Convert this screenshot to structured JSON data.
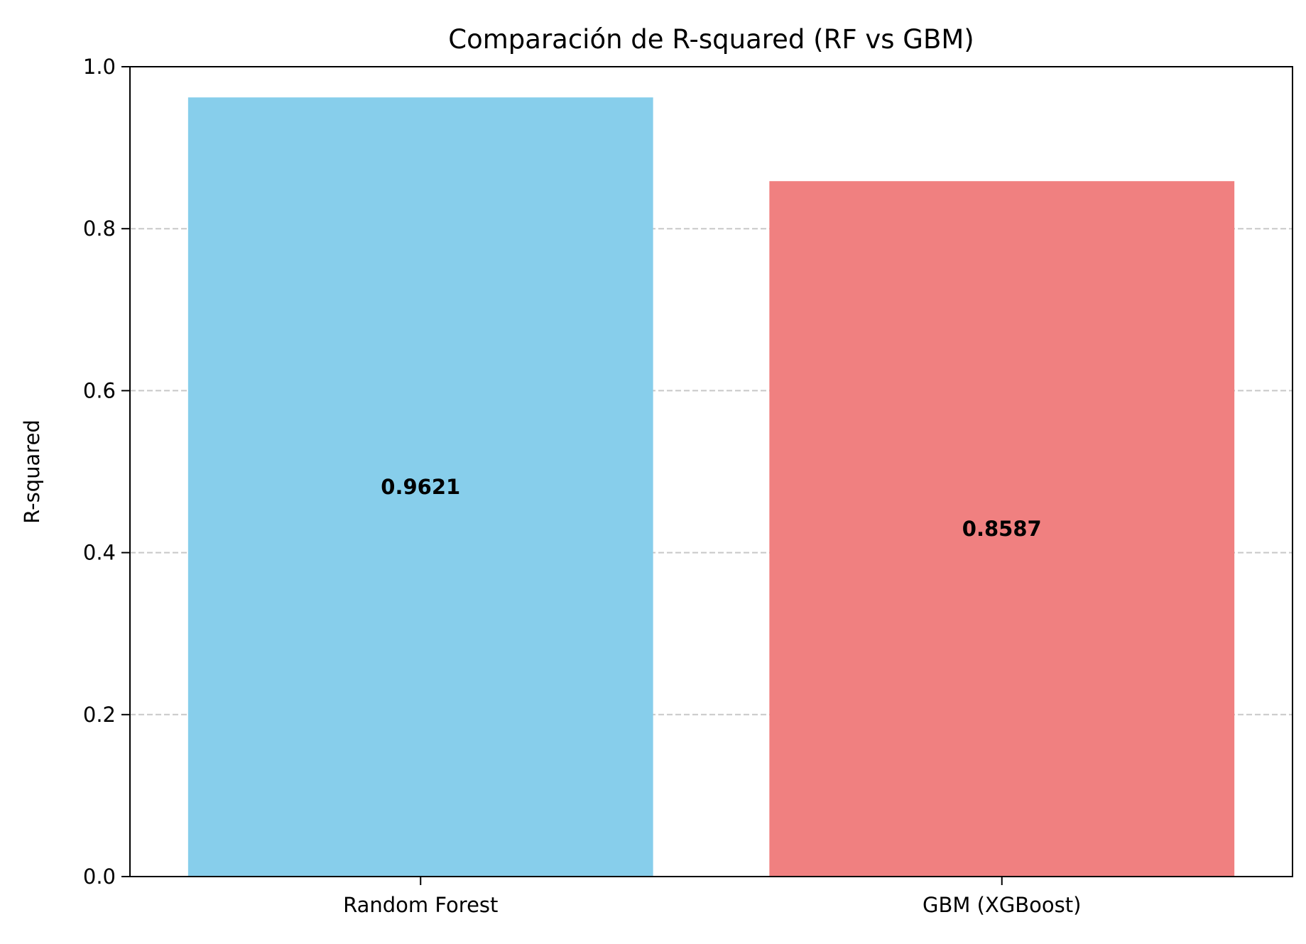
{
  "chart_data": {
    "type": "bar",
    "title": "Comparación de R-squared (RF vs GBM)",
    "xlabel": "",
    "ylabel": "R-squared",
    "categories": [
      "Random Forest",
      "GBM (XGBoost)"
    ],
    "values": [
      0.9621,
      0.8587
    ],
    "value_labels": [
      "0.9621",
      "0.8587"
    ],
    "bar_colors": [
      "#87CEEB",
      "#F08080"
    ],
    "ylim": [
      0,
      1.0
    ],
    "yticks": [
      0.0,
      0.2,
      0.4,
      0.6,
      0.8,
      1.0
    ],
    "ytick_labels": [
      "0.0",
      "0.2",
      "0.4",
      "0.6",
      "0.8",
      "1.0"
    ],
    "grid": "y-dashed",
    "legend": "none"
  }
}
